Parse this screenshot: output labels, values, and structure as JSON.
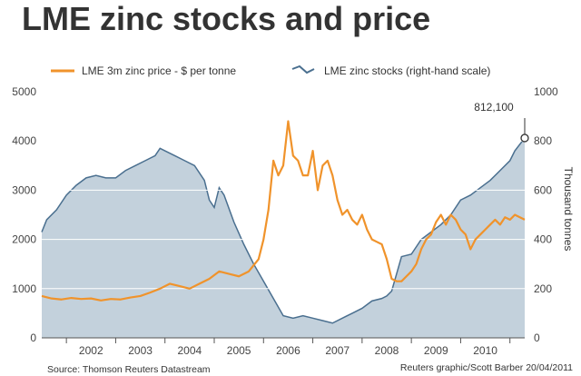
{
  "title": "LME zinc stocks and price",
  "legend": {
    "price_label": "LME 3m zinc price - $ per tonne",
    "stocks_label": "LME zinc stocks (right-hand scale)"
  },
  "annotation": "812,100",
  "right_axis_title": "Thousand tonnes",
  "source": "Source: Thomson Reuters Datastream",
  "credit": "Reuters graphic/Scott Barber 20/04/2011",
  "colors": {
    "price": "#f0932b",
    "stocks_fill": "#c3d1dc",
    "stocks_line": "#4a6f8f",
    "grid": "#ffffff"
  },
  "chart_data": {
    "type": "line",
    "title": "LME zinc stocks and price",
    "x_ticks": [
      "2002",
      "2003",
      "2004",
      "2005",
      "2006",
      "2007",
      "2008",
      "2009",
      "2010"
    ],
    "xlim": [
      2001.5,
      2011.3
    ],
    "left_axis": {
      "ylim": [
        0,
        5000
      ],
      "ticks": [
        "0",
        "1000",
        "2000",
        "3000",
        "4000",
        "5000"
      ]
    },
    "right_axis": {
      "ylim": [
        0,
        1000
      ],
      "ticks": [
        "0",
        "200",
        "400",
        "600",
        "800",
        "1000"
      ],
      "label": "Thousand tonnes"
    },
    "grid": true,
    "legend_position": "top",
    "series": [
      {
        "name": "LME 3m zinc price - $ per tonne",
        "axis": "left",
        "type": "line",
        "x": [
          2001.5,
          2001.7,
          2001.9,
          2002.1,
          2002.3,
          2002.5,
          2002.7,
          2002.9,
          2003.1,
          2003.3,
          2003.5,
          2003.7,
          2003.9,
          2004.1,
          2004.3,
          2004.5,
          2004.7,
          2004.9,
          2005.1,
          2005.3,
          2005.5,
          2005.7,
          2005.9,
          2006.0,
          2006.1,
          2006.2,
          2006.3,
          2006.4,
          2006.5,
          2006.6,
          2006.7,
          2006.8,
          2006.9,
          2007.0,
          2007.1,
          2007.2,
          2007.3,
          2007.4,
          2007.5,
          2007.6,
          2007.7,
          2007.8,
          2007.9,
          2008.0,
          2008.1,
          2008.2,
          2008.3,
          2008.4,
          2008.5,
          2008.6,
          2008.7,
          2008.8,
          2008.9,
          2009.0,
          2009.1,
          2009.2,
          2009.3,
          2009.4,
          2009.5,
          2009.6,
          2009.7,
          2009.8,
          2009.9,
          2010.0,
          2010.1,
          2010.2,
          2010.3,
          2010.4,
          2010.5,
          2010.6,
          2010.7,
          2010.8,
          2010.9,
          2011.0,
          2011.1,
          2011.3
        ],
        "y": [
          850,
          800,
          780,
          810,
          790,
          800,
          760,
          790,
          780,
          820,
          850,
          920,
          1000,
          1100,
          1050,
          1000,
          1100,
          1200,
          1350,
          1300,
          1250,
          1350,
          1600,
          2000,
          2600,
          3600,
          3300,
          3500,
          4400,
          3700,
          3600,
          3300,
          3300,
          3800,
          3000,
          3500,
          3600,
          3300,
          2800,
          2500,
          2600,
          2400,
          2300,
          2500,
          2200,
          2000,
          1950,
          1900,
          1600,
          1200,
          1150,
          1150,
          1250,
          1350,
          1500,
          1800,
          2000,
          2100,
          2350,
          2500,
          2300,
          2500,
          2400,
          2200,
          2100,
          1800,
          2000,
          2100,
          2200,
          2300,
          2400,
          2300,
          2450,
          2400,
          2500,
          2400
        ]
      },
      {
        "name": "LME zinc stocks (right-hand scale)",
        "axis": "right",
        "type": "area",
        "x": [
          2001.5,
          2001.6,
          2001.8,
          2002.0,
          2002.2,
          2002.4,
          2002.6,
          2002.8,
          2003.0,
          2003.2,
          2003.4,
          2003.6,
          2003.8,
          2003.9,
          2004.0,
          2004.2,
          2004.4,
          2004.6,
          2004.8,
          2004.9,
          2005.0,
          2005.1,
          2005.2,
          2005.4,
          2005.6,
          2005.8,
          2006.0,
          2006.2,
          2006.4,
          2006.6,
          2006.8,
          2007.0,
          2007.2,
          2007.4,
          2007.6,
          2007.8,
          2008.0,
          2008.2,
          2008.4,
          2008.5,
          2008.6,
          2008.7,
          2008.8,
          2009.0,
          2009.2,
          2009.4,
          2009.6,
          2009.8,
          2010.0,
          2010.2,
          2010.4,
          2010.6,
          2010.8,
          2011.0,
          2011.1,
          2011.3
        ],
        "y": [
          430,
          480,
          520,
          580,
          620,
          650,
          660,
          650,
          650,
          680,
          700,
          720,
          740,
          770,
          760,
          740,
          720,
          700,
          640,
          560,
          530,
          610,
          580,
          470,
          380,
          300,
          230,
          160,
          90,
          80,
          90,
          80,
          70,
          60,
          80,
          100,
          120,
          150,
          160,
          170,
          190,
          260,
          330,
          340,
          400,
          430,
          460,
          500,
          560,
          580,
          610,
          640,
          680,
          720,
          760,
          812
        ]
      }
    ],
    "annotations": [
      {
        "text": "812,100",
        "series": "LME zinc stocks (right-hand scale)",
        "x": 2011.3,
        "y": 812
      }
    ]
  }
}
